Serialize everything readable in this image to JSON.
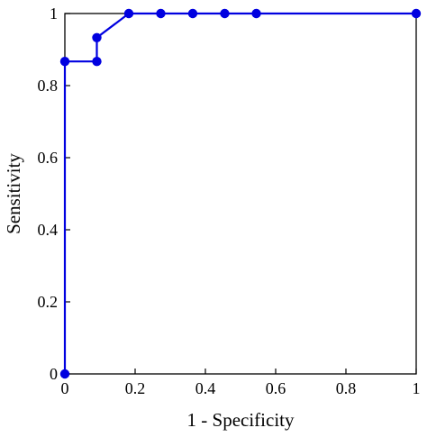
{
  "chart_data": {
    "type": "line",
    "title": "",
    "xlabel": "1 - Specificity",
    "ylabel": "Sensitivity",
    "xlim": [
      0,
      1
    ],
    "ylim": [
      0,
      1
    ],
    "xticks": [
      0,
      0.2,
      0.4,
      0.6,
      0.8,
      1
    ],
    "yticks": [
      0,
      0.2,
      0.4,
      0.6,
      0.8,
      1
    ],
    "xtick_labels": [
      "0",
      "0.2",
      "0.4",
      "0.6",
      "0.8",
      "1"
    ],
    "ytick_labels": [
      "0",
      "0.2",
      "0.4",
      "0.6",
      "0.8",
      "1"
    ],
    "grid": false,
    "series": [
      {
        "color": "#0000e0",
        "x": [
          0,
          0,
          0.091,
          0.091,
          0.182,
          0.273,
          0.364,
          0.455,
          0.545,
          1
        ],
        "y": [
          0,
          0.867,
          0.867,
          0.933,
          1,
          1,
          1,
          1,
          1,
          1
        ]
      }
    ]
  }
}
